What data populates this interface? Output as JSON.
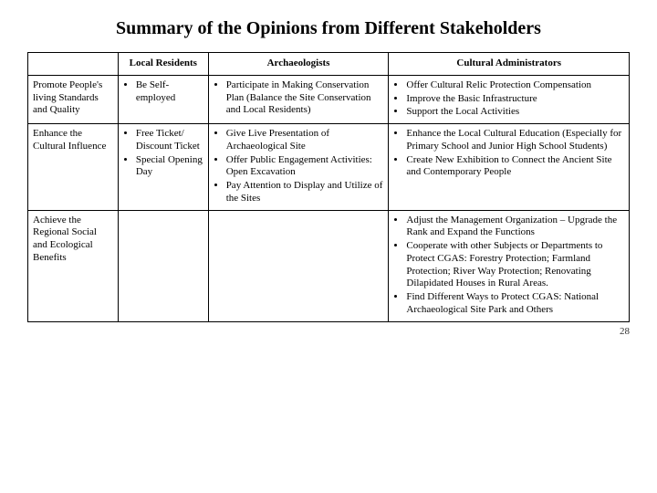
{
  "title": "Summary of the Opinions from Different Stakeholders",
  "pagenum": "28",
  "columns": {
    "rowhead": "",
    "local": "Local Residents",
    "arch": "Archaeologists",
    "cult": "Cultural Administrators"
  },
  "rows": [
    {
      "head": "Promote People's living Standards and Quality",
      "local": [
        "Be Self-employed"
      ],
      "arch": [
        "Participate in Making Conservation Plan (Balance the Site Conservation and Local Residents)"
      ],
      "cult": [
        "Offer Cultural Relic Protection Compensation",
        "Improve the Basic Infrastructure",
        "Support the Local Activities"
      ]
    },
    {
      "head": "Enhance the Cultural Influence",
      "local": [
        "Free Ticket/ Discount Ticket",
        "Special Opening Day"
      ],
      "arch": [
        "Give Live Presentation of Archaeological Site",
        "Offer Public Engagement Activities: Open Excavation",
        "Pay Attention to Display and Utilize of the Sites"
      ],
      "cult": [
        "Enhance the Local Cultural Education (Especially for Primary School and Junior High School Students)",
        "Create New Exhibition to Connect the Ancient Site and Contemporary People"
      ]
    },
    {
      "head": "Achieve the Regional Social and Ecological Benefits",
      "local": [],
      "arch": [],
      "cult": [
        "Adjust the Management Organization – Upgrade the Rank and Expand the Functions",
        "Cooperate with other Subjects or Departments to Protect CGAS: Forestry Protection; Farmland Protection; River Way Protection; Renovating Dilapidated Houses in Rural Areas.",
        "Find Different Ways to Protect CGAS: National Archaeological Site Park and Others"
      ]
    }
  ]
}
